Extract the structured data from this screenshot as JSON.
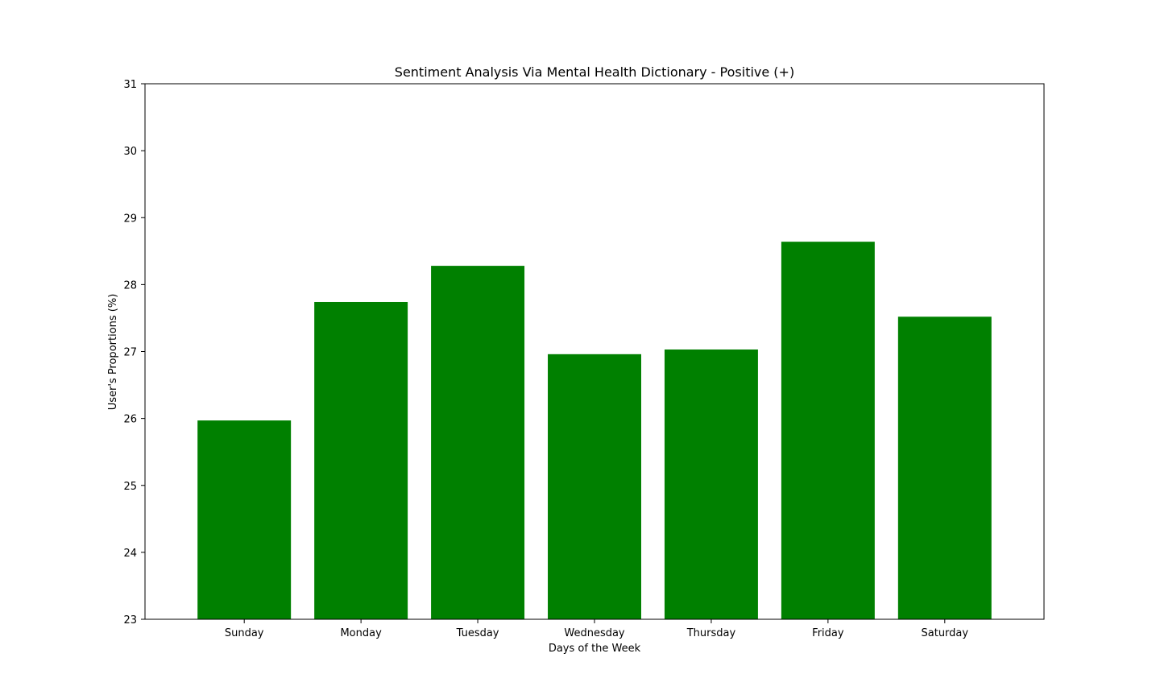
{
  "chart_data": {
    "type": "bar",
    "title": "Sentiment Analysis Via Mental Health Dictionary - Positive (+)",
    "xlabel": "Days of the Week",
    "ylabel": "User's Proportions (%)",
    "categories": [
      "Sunday",
      "Monday",
      "Tuesday",
      "Wednesday",
      "Thursday",
      "Friday",
      "Saturday"
    ],
    "values": [
      25.97,
      27.74,
      28.28,
      26.96,
      27.03,
      28.64,
      27.52
    ],
    "ylim": [
      23,
      31
    ],
    "yticks": [
      "23",
      "24",
      "25",
      "26",
      "27",
      "28",
      "29",
      "30",
      "31"
    ],
    "bar_color": "#008000",
    "grid": false
  }
}
